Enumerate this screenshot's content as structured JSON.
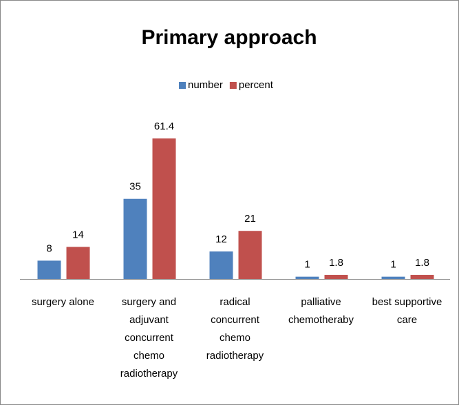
{
  "chart_data": {
    "type": "bar",
    "title": "Primary approach",
    "categories": [
      "surgery alone",
      "surgery and adjuvant concurrent chemo radiotherapy",
      "radical concurrent chemo radiotherapy",
      "palliative chemotheraby",
      "best supportive care"
    ],
    "series": [
      {
        "name": "number",
        "color": "#4f81bd",
        "values": [
          8,
          35,
          12,
          1,
          1
        ]
      },
      {
        "name": "percent",
        "color": "#c0504d",
        "values": [
          14,
          61.4,
          21,
          1.8,
          1.8
        ]
      }
    ],
    "legend": "top"
  }
}
